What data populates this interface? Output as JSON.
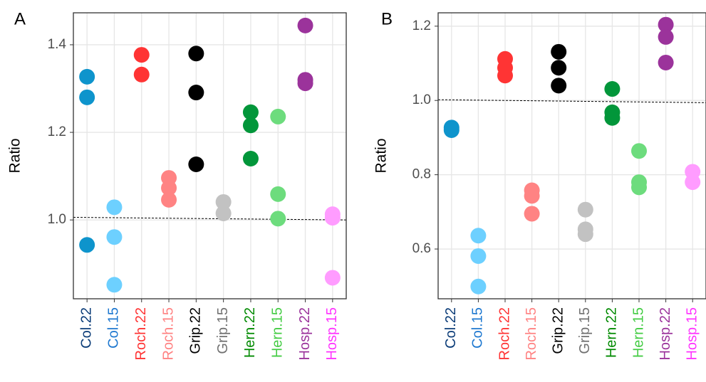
{
  "chart_data": [
    {
      "type": "strip",
      "panel_label": "A",
      "y_label": "Ratio",
      "ylim": [
        0.82,
        1.473
      ],
      "yticks": [
        {
          "value": 1.0,
          "label": "1.0"
        },
        1.2,
        1.4
      ],
      "grid": true,
      "reference_line": [
        1.006,
        1.0
      ],
      "series": [
        {
          "name": "Col.22",
          "color": "#0e94cc",
          "label_color": "#0b3c78",
          "values": [
            1.327,
            1.28,
            0.943
          ]
        },
        {
          "name": "Col.15",
          "color": "#6dd0ff",
          "label_color": "#1e78d0",
          "values": [
            1.029,
            0.961,
            0.852
          ]
        },
        {
          "name": "Roch.22",
          "color": "#ff3434",
          "label_color": "#ff3434",
          "values": [
            1.377,
            1.332
          ]
        },
        {
          "name": "Roch.15",
          "color": "#ff8383",
          "label_color": "#ff8383",
          "values": [
            1.096,
            1.073,
            1.046
          ]
        },
        {
          "name": "Grip.22",
          "color": "#000000",
          "label_color": "#000000",
          "values": [
            1.38,
            1.291,
            1.127
          ]
        },
        {
          "name": "Grip.15",
          "color": "#c2c2c2",
          "label_color": "#707070",
          "values": [
            1.041,
            1.015
          ]
        },
        {
          "name": "Hern.22",
          "color": "#02963a",
          "label_color": "#008a00",
          "values": [
            1.246,
            1.216,
            1.14
          ]
        },
        {
          "name": "Hern.15",
          "color": "#6ddc7d",
          "label_color": "#44cc44",
          "values": [
            1.236,
            1.059,
            1.003
          ]
        },
        {
          "name": "Hosp.22",
          "color": "#9b339b",
          "label_color": "#9b339b",
          "values": [
            1.444,
            1.32,
            1.312
          ]
        },
        {
          "name": "Hosp.15",
          "color": "#ff9cff",
          "label_color": "#ff33ff",
          "values": [
            1.013,
            1.005,
            0.868
          ]
        }
      ]
    },
    {
      "type": "strip",
      "panel_label": "B",
      "y_label": "Ratio",
      "ylim": [
        0.466,
        1.236
      ],
      "yticks": [
        0.6,
        0.8,
        {
          "value": 1.0,
          "label": "1.0"
        },
        1.2
      ],
      "grid": true,
      "reference_line": [
        1.002,
        0.994
      ],
      "series": [
        {
          "name": "Col.22",
          "color": "#0e94cc",
          "label_color": "#0b3c78",
          "values": [
            0.927,
            0.92
          ]
        },
        {
          "name": "Col.15",
          "color": "#6dd0ff",
          "label_color": "#1e78d0",
          "values": [
            0.636,
            0.581,
            0.499
          ]
        },
        {
          "name": "Roch.22",
          "color": "#ff3434",
          "label_color": "#ff3434",
          "values": [
            1.112,
            1.088,
            1.067
          ]
        },
        {
          "name": "Roch.15",
          "color": "#ff8383",
          "label_color": "#ff8383",
          "values": [
            0.758,
            0.743,
            0.695
          ]
        },
        {
          "name": "Grip.22",
          "color": "#000000",
          "label_color": "#000000",
          "values": [
            1.131,
            1.088,
            1.04
          ]
        },
        {
          "name": "Grip.15",
          "color": "#c2c2c2",
          "label_color": "#707070",
          "values": [
            0.706,
            0.653,
            0.64
          ]
        },
        {
          "name": "Hern.22",
          "color": "#02963a",
          "label_color": "#008a00",
          "values": [
            1.031,
            0.968,
            0.953
          ]
        },
        {
          "name": "Hern.15",
          "color": "#6ddc7d",
          "label_color": "#44cc44",
          "values": [
            0.864,
            0.78,
            0.766
          ]
        },
        {
          "name": "Hosp.22",
          "color": "#9b339b",
          "label_color": "#9b339b",
          "values": [
            1.204,
            1.171,
            1.102
          ]
        },
        {
          "name": "Hosp.15",
          "color": "#ff9cff",
          "label_color": "#ff33ff",
          "values": [
            0.808,
            0.78
          ]
        }
      ]
    }
  ]
}
